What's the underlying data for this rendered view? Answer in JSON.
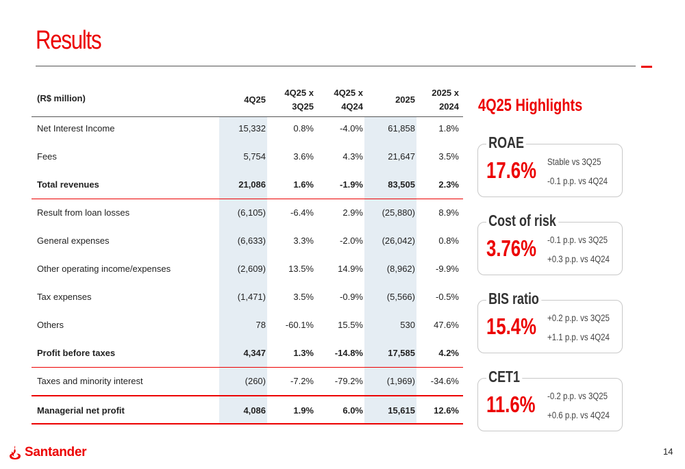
{
  "page": {
    "title": "Results",
    "page_number": "14"
  },
  "table": {
    "headers": {
      "label": "(R$ million)",
      "c1": "4Q25",
      "c2_l1": "4Q25 x",
      "c2_l2": "3Q25",
      "c3_l1": "4Q25 x",
      "c3_l2": "4Q24",
      "c4": "2025",
      "c5_l1": "2025 x",
      "c5_l2": "2024"
    },
    "rows": [
      {
        "label": "Net Interest Income",
        "c1": "15,332",
        "c2": "0.8%",
        "c3": "-4.0%",
        "c4": "61,858",
        "c5": "1.8%"
      },
      {
        "label": "Fees",
        "c1": "5,754",
        "c2": "3.6%",
        "c3": "4.3%",
        "c4": "21,647",
        "c5": "3.5%"
      },
      {
        "label": "Total revenues",
        "c1": "21,086",
        "c2": "1.6%",
        "c3": "-1.9%",
        "c4": "83,505",
        "c5": "2.3%"
      },
      {
        "label": "Result from loan losses",
        "c1": "(6,105)",
        "c2": "-6.4%",
        "c3": "2.9%",
        "c4": "(25,880)",
        "c5": "8.9%"
      },
      {
        "label": "General expenses",
        "c1": "(6,633)",
        "c2": "3.3%",
        "c3": "-2.0%",
        "c4": "(26,042)",
        "c5": "0.8%"
      },
      {
        "label": "Other operating income/expenses",
        "c1": "(2,609)",
        "c2": "13.5%",
        "c3": "14.9%",
        "c4": "(8,962)",
        "c5": "-9.9%"
      },
      {
        "label": "Tax expenses",
        "c1": "(1,471)",
        "c2": "3.5%",
        "c3": "-0.9%",
        "c4": "(5,566)",
        "c5": "-0.5%"
      },
      {
        "label": "Others",
        "c1": "78",
        "c2": "-60.1%",
        "c3": "15.5%",
        "c4": "530",
        "c5": "47.6%"
      },
      {
        "label": "Profit before taxes",
        "c1": "4,347",
        "c2": "1.3%",
        "c3": "-14.8%",
        "c4": "17,585",
        "c5": "4.2%"
      },
      {
        "label": "Taxes and minority interest",
        "c1": "(260)",
        "c2": "-7.2%",
        "c3": "-79.2%",
        "c4": "(1,969)",
        "c5": "-34.6%"
      },
      {
        "label": "Managerial net profit",
        "c1": "4,086",
        "c2": "1.9%",
        "c3": "6.0%",
        "c4": "15,615",
        "c5": "12.6%"
      }
    ]
  },
  "highlights": {
    "title": "4Q25 Highlights",
    "cards": [
      {
        "label": "ROAE",
        "value": "17.6%",
        "note1": "Stable vs 3Q25",
        "note2": "-0.1 p.p. vs 4Q24"
      },
      {
        "label": "Cost of risk",
        "value": "3.76%",
        "note1": "-0.1 p.p. vs 3Q25",
        "note2": "+0.3 p.p. vs 4Q24"
      },
      {
        "label": "BIS ratio",
        "value": "15.4%",
        "note1": "+0.2 p.p. vs 3Q25",
        "note2": "+1.1 p.p. vs 4Q24"
      },
      {
        "label": "CET1",
        "value": "11.6%",
        "note1": "-0.2 p.p. vs 3Q25",
        "note2": "+0.6 p.p. vs 4Q24"
      }
    ]
  },
  "brand": {
    "name": "Santander",
    "accent": "#ec0000",
    "band": "#e5edf3"
  }
}
